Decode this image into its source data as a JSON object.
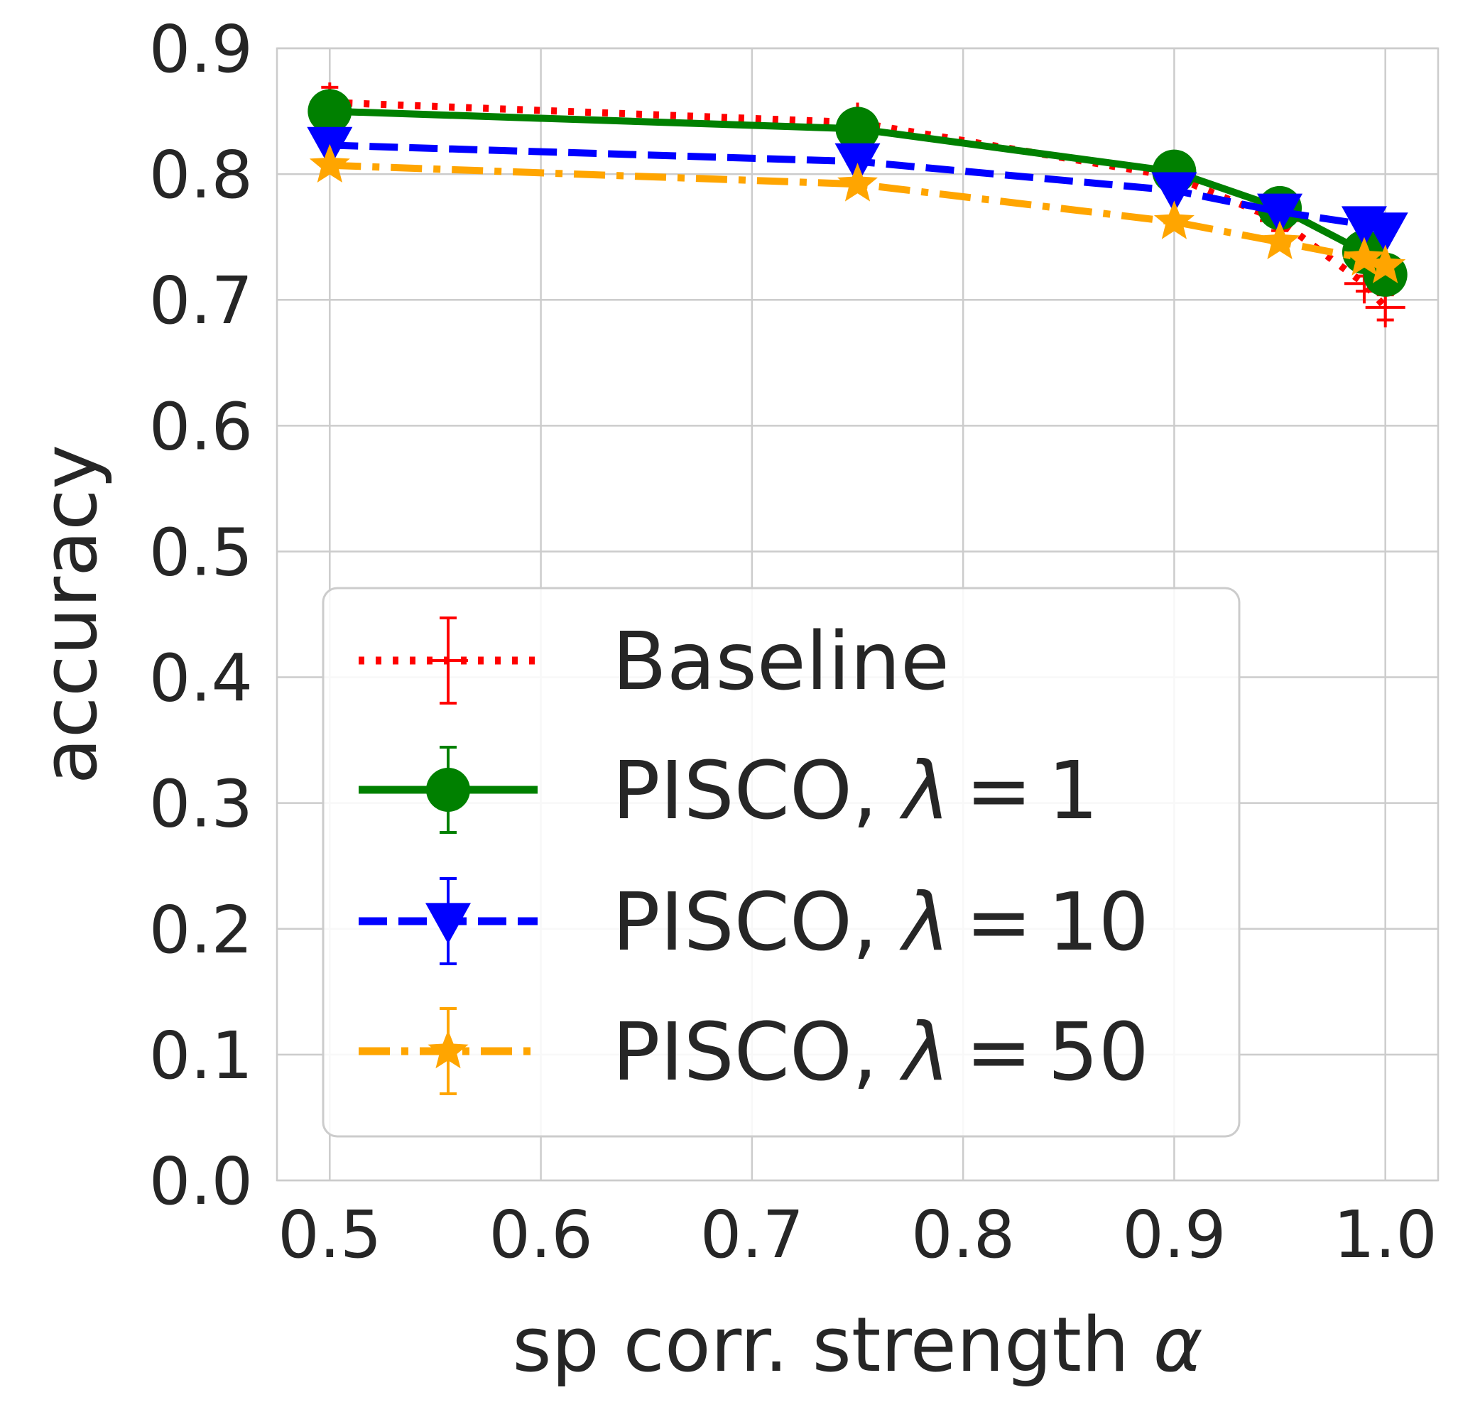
{
  "chart_data": {
    "type": "line",
    "title": "",
    "xlabel": "sp corr. strength",
    "xlabel_symbol": "α",
    "ylabel": "accuracy",
    "xlim": [
      0.475,
      1.025
    ],
    "ylim": [
      0.0,
      0.9
    ],
    "xticks": [
      "0.5",
      "0.6",
      "0.7",
      "0.8",
      "0.9",
      "1.0"
    ],
    "yticks": [
      "0.0",
      "0.1",
      "0.2",
      "0.3",
      "0.4",
      "0.5",
      "0.6",
      "0.7",
      "0.8",
      "0.9"
    ],
    "grid": true,
    "legend_position": "center-left",
    "series": [
      {
        "name": "Baseline",
        "color": "#ff0000",
        "linestyle": "dotted",
        "marker": "plus",
        "x": [
          0.5,
          0.75,
          0.9,
          0.95,
          0.99,
          1.0
        ],
        "y": [
          0.857,
          0.841,
          0.798,
          0.763,
          0.713,
          0.694
        ],
        "err": [
          0.012,
          0.01,
          0.008,
          0.008,
          0.006,
          0.01
        ]
      },
      {
        "name": "PISCO, λ = 1",
        "legend_prefix": "PISCO,",
        "legend_lambda": "λ",
        "legend_eq": "=",
        "legend_value": "1",
        "color": "#008000",
        "linestyle": "solid",
        "marker": "circle",
        "x": [
          0.5,
          0.75,
          0.9,
          0.95,
          0.99,
          1.0
        ],
        "y": [
          0.85,
          0.836,
          0.802,
          0.773,
          0.738,
          0.72
        ],
        "err": [
          0.004,
          0.004,
          0.004,
          0.004,
          0.004,
          0.004
        ]
      },
      {
        "name": "PISCO, λ = 10",
        "legend_prefix": "PISCO,",
        "legend_lambda": "λ",
        "legend_eq": "=",
        "legend_value": "10",
        "color": "#0000ff",
        "linestyle": "dashed",
        "marker": "triangle-down",
        "x": [
          0.5,
          0.75,
          0.9,
          0.95,
          0.99,
          1.0
        ],
        "y": [
          0.823,
          0.81,
          0.787,
          0.77,
          0.76,
          0.755
        ],
        "err": [
          0.004,
          0.004,
          0.004,
          0.004,
          0.004,
          0.004
        ]
      },
      {
        "name": "PISCO, λ = 50",
        "legend_prefix": "PISCO,",
        "legend_lambda": "λ",
        "legend_eq": "=",
        "legend_value": "50",
        "color": "#ffa500",
        "linestyle": "dashdot",
        "marker": "star",
        "x": [
          0.5,
          0.75,
          0.9,
          0.95,
          0.99,
          1.0
        ],
        "y": [
          0.807,
          0.792,
          0.762,
          0.746,
          0.733,
          0.727
        ],
        "err": [
          0.004,
          0.004,
          0.004,
          0.004,
          0.004,
          0.004
        ]
      }
    ]
  }
}
